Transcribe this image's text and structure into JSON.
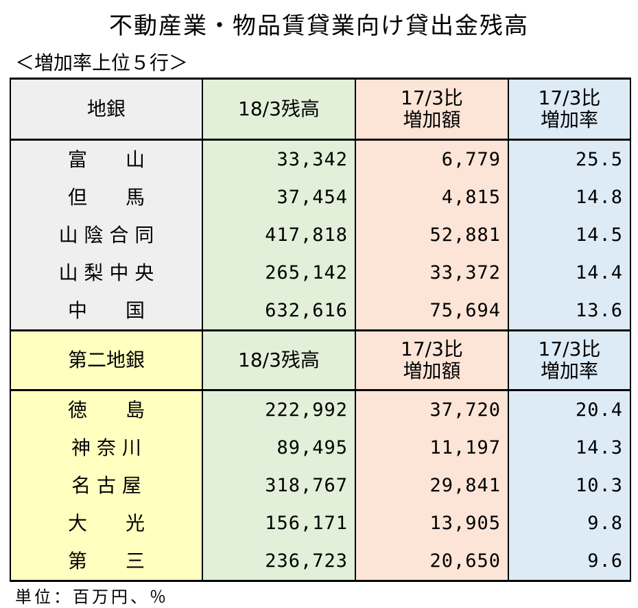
{
  "title": "不動産業・物品賃貸業向け貸出金残高",
  "subtitle": "＜増加率上位５行＞",
  "footnote": "単位：百万円、％",
  "headers": {
    "regional": "地銀",
    "second_regional": "第二地銀",
    "balance": "18/3残高",
    "increase_amount_line1": "17/3比",
    "increase_amount_line2": "増加額",
    "increase_rate_line1": "17/3比",
    "increase_rate_line2": "増加率"
  },
  "regional_banks": [
    {
      "name": "富　　山",
      "balance": "33,342",
      "increase": "6,779",
      "rate": "25.5"
    },
    {
      "name": "但　　馬",
      "balance": "37,454",
      "increase": "4,815",
      "rate": "14.8"
    },
    {
      "name": "山 陰 合 同",
      "balance": "417,818",
      "increase": "52,881",
      "rate": "14.5"
    },
    {
      "name": "山 梨 中 央",
      "balance": "265,142",
      "increase": "33,372",
      "rate": "14.4"
    },
    {
      "name": "中　　国",
      "balance": "632,616",
      "increase": "75,694",
      "rate": "13.6"
    }
  ],
  "second_regional_banks": [
    {
      "name": "徳　　島",
      "balance": "222,992",
      "increase": "37,720",
      "rate": "20.4"
    },
    {
      "name": "神 奈 川",
      "balance": "89,495",
      "increase": "11,197",
      "rate": "14.3"
    },
    {
      "name": "名 古 屋",
      "balance": "318,767",
      "increase": "29,841",
      "rate": "10.3"
    },
    {
      "name": "大　　光",
      "balance": "156,171",
      "increase": "13,905",
      "rate": "9.8"
    },
    {
      "name": "第　　三",
      "balance": "236,723",
      "increase": "20,650",
      "rate": "9.6"
    }
  ],
  "colors": {
    "regional_name_bg": "#efefef",
    "second_name_bg": "#ffffc0",
    "balance_bg": "#e2efd9",
    "increase_bg": "#fce4d6",
    "rate_bg": "#ddebf7"
  }
}
